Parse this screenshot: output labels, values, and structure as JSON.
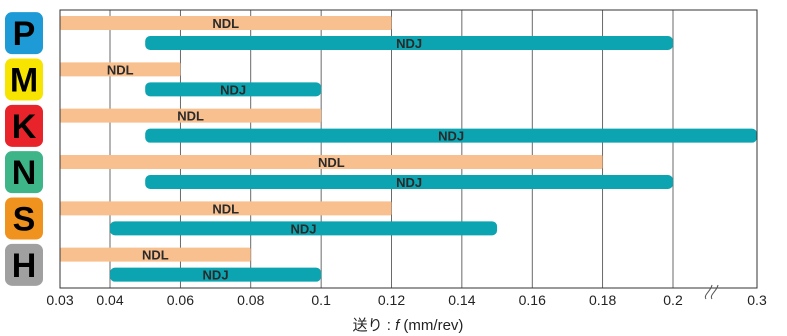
{
  "chart_data": {
    "type": "bar",
    "orientation": "horizontal",
    "xlabel": "送り : f (mm/rev)",
    "xlabel_prefix": "送り : ",
    "xlabel_var": "f",
    "xlabel_unit": " (mm/rev)",
    "x_ticks": [
      "0.03",
      "0.04",
      "0.06",
      "0.08",
      "0.1",
      "0.12",
      "0.14",
      "0.16",
      "0.18",
      "0.2",
      "0.3"
    ],
    "xlim": [
      0.03,
      0.3
    ],
    "axis_break": "between 0.2 and 0.3",
    "grid": true,
    "categories": [
      {
        "name": "P",
        "color": "#1e9ad6",
        "letter_color": "#000000"
      },
      {
        "name": "M",
        "color": "#f7e400",
        "letter_color": "#000000"
      },
      {
        "name": "K",
        "color": "#e8232a",
        "letter_color": "#000000"
      },
      {
        "name": "N",
        "color": "#3eb489",
        "letter_color": "#000000"
      },
      {
        "name": "S",
        "color": "#f0931e",
        "letter_color": "#000000"
      },
      {
        "name": "H",
        "color": "#a0a0a0",
        "letter_color": "#000000"
      }
    ],
    "series": [
      {
        "name": "NDL",
        "color": "#f9c08f",
        "ranges": [
          [
            0.03,
            0.12
          ],
          [
            0.03,
            0.06
          ],
          [
            0.03,
            0.1
          ],
          [
            0.03,
            0.18
          ],
          [
            0.03,
            0.12
          ],
          [
            0.03,
            0.08
          ]
        ]
      },
      {
        "name": "NDJ",
        "color": "#0ba4b0",
        "ranges": [
          [
            0.05,
            0.2
          ],
          [
            0.05,
            0.1
          ],
          [
            0.05,
            0.3
          ],
          [
            0.05,
            0.2
          ],
          [
            0.04,
            0.15
          ],
          [
            0.04,
            0.1
          ]
        ]
      }
    ]
  }
}
